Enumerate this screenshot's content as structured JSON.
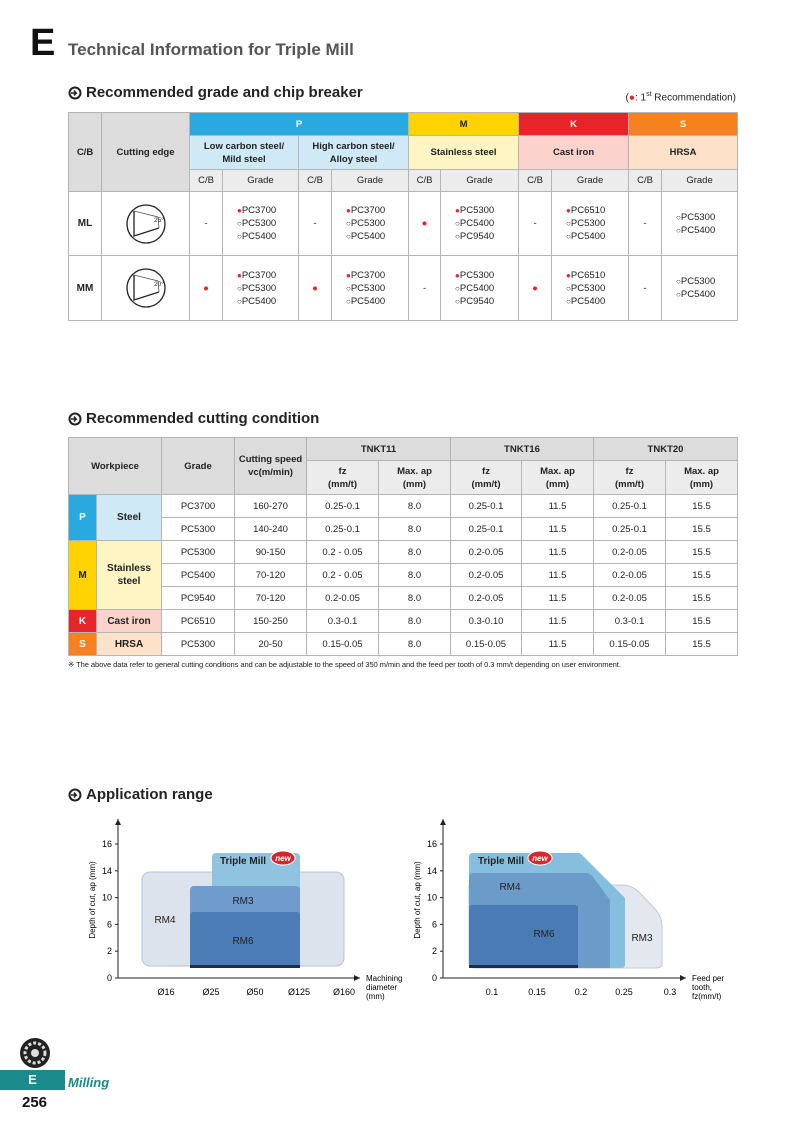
{
  "header": {
    "letter": "E",
    "title": "Technical Information for Triple Mill"
  },
  "grade_section": {
    "title": "Recommended grade and chip breaker",
    "legend": {
      "open": "(",
      "symbol": "●",
      "text": ": 1",
      "sup": "st",
      "rest": " Recommendation)"
    },
    "table": {
      "cb_header": "C/B",
      "edge_header": "Cutting edge",
      "groups": [
        {
          "code": "P",
          "materials": [
            [
              "Low carbon steel/",
              "Mild steel"
            ],
            [
              "High carbon steel/",
              "Alloy steel"
            ]
          ]
        },
        {
          "code": "M",
          "materials": [
            [
              "Stainless steel"
            ]
          ]
        },
        {
          "code": "K",
          "materials": [
            [
              "Cast iron"
            ]
          ]
        },
        {
          "code": "S",
          "materials": [
            [
              "HRSA"
            ]
          ]
        }
      ],
      "sub_headers": [
        "C/B",
        "Grade"
      ],
      "rows": [
        {
          "cb": "ML",
          "angle": "25°",
          "cells": [
            {
              "mark": "-",
              "grades": [
                {
                  "symbol": "●",
                  "grade": "PC3700"
                },
                {
                  "symbol": "○",
                  "grade": "PC5300"
                },
                {
                  "symbol": "○",
                  "grade": "PC5400"
                }
              ]
            },
            {
              "mark": "-",
              "grades": [
                {
                  "symbol": "●",
                  "grade": "PC3700"
                },
                {
                  "symbol": "○",
                  "grade": "PC5300"
                },
                {
                  "symbol": "○",
                  "grade": "PC5400"
                }
              ]
            },
            {
              "mark": "●",
              "grades": [
                {
                  "symbol": "●",
                  "grade": "PC5300"
                },
                {
                  "symbol": "○",
                  "grade": "PC5400"
                },
                {
                  "symbol": "○",
                  "grade": "PC9540"
                }
              ]
            },
            {
              "mark": "-",
              "grades": [
                {
                  "symbol": "●",
                  "grade": "PC6510"
                },
                {
                  "symbol": "○",
                  "grade": "PC5300"
                },
                {
                  "symbol": "○",
                  "grade": "PC5400"
                }
              ]
            },
            {
              "mark": "-",
              "grades": [
                {
                  "symbol": "○",
                  "grade": "PC5300"
                },
                {
                  "symbol": "○",
                  "grade": "PC5400"
                }
              ]
            }
          ]
        },
        {
          "cb": "MM",
          "angle": "20°",
          "cells": [
            {
              "mark": "●",
              "grades": [
                {
                  "symbol": "●",
                  "grade": "PC3700"
                },
                {
                  "symbol": "○",
                  "grade": "PC5300"
                },
                {
                  "symbol": "○",
                  "grade": "PC5400"
                }
              ]
            },
            {
              "mark": "●",
              "grades": [
                {
                  "symbol": "●",
                  "grade": "PC3700"
                },
                {
                  "symbol": "○",
                  "grade": "PC5300"
                },
                {
                  "symbol": "○",
                  "grade": "PC5400"
                }
              ]
            },
            {
              "mark": "-",
              "grades": [
                {
                  "symbol": "●",
                  "grade": "PC5300"
                },
                {
                  "symbol": "○",
                  "grade": "PC5400"
                },
                {
                  "symbol": "○",
                  "grade": "PC9540"
                }
              ]
            },
            {
              "mark": "●",
              "grades": [
                {
                  "symbol": "●",
                  "grade": "PC6510"
                },
                {
                  "symbol": "○",
                  "grade": "PC5300"
                },
                {
                  "symbol": "○",
                  "grade": "PC5400"
                }
              ]
            },
            {
              "mark": "-",
              "grades": [
                {
                  "symbol": "○",
                  "grade": "PC5300"
                },
                {
                  "symbol": "○",
                  "grade": "PC5400"
                }
              ]
            }
          ]
        }
      ]
    }
  },
  "condition_section": {
    "title": "Recommended cutting condition",
    "table": {
      "headers": {
        "workpiece": "Workpiece",
        "grade": "Grade",
        "speed": [
          "Cutting speed",
          "vc(m/min)"
        ],
        "tools": [
          "TNKT11",
          "TNKT16",
          "TNKT20"
        ],
        "fz": [
          "fz",
          "(mm/t)"
        ],
        "ap": [
          "Max. ap",
          "(mm)"
        ]
      },
      "groups": [
        {
          "code": "P",
          "name": [
            "Steel"
          ],
          "rows": [
            [
              "PC3700",
              "160-270",
              "0.25-0.1",
              "8.0",
              "0.25-0.1",
              "11.5",
              "0.25-0.1",
              "15.5"
            ],
            [
              "PC5300",
              "140-240",
              "0.25-0.1",
              "8.0",
              "0.25-0.1",
              "11.5",
              "0.25-0.1",
              "15.5"
            ]
          ]
        },
        {
          "code": "M",
          "name": [
            "Stainless",
            "steel"
          ],
          "rows": [
            [
              "PC5300",
              "90-150",
              "0.2 - 0.05",
              "8.0",
              "0.2-0.05",
              "11.5",
              "0.2-0.05",
              "15.5"
            ],
            [
              "PC5400",
              "70-120",
              "0.2 - 0.05",
              "8.0",
              "0.2-0.05",
              "11.5",
              "0.2-0.05",
              "15.5"
            ],
            [
              "PC9540",
              "70-120",
              "0.2-0.05",
              "8.0",
              "0.2-0.05",
              "11.5",
              "0.2-0.05",
              "15.5"
            ]
          ]
        },
        {
          "code": "K",
          "name": [
            "Cast iron"
          ],
          "rows": [
            [
              "PC6510",
              "150-250",
              "0.3-0.1",
              "8.0",
              "0.3-0.10",
              "11.5",
              "0.3-0.1",
              "15.5"
            ]
          ]
        },
        {
          "code": "S",
          "name": [
            "HRSA"
          ],
          "rows": [
            [
              "PC5300",
              "20-50",
              "0.15-0.05",
              "8.0",
              "0.15-0.05",
              "11.5",
              "0.15-0.05",
              "15.5"
            ]
          ]
        }
      ]
    },
    "note": "※  The above data refer to general cutting conditions and can be adjustable to the speed of 350 m/min and the feed per tooth of 0.3 mm/t depending on user environment."
  },
  "application_section": {
    "title": "Application range",
    "charts": [
      {
        "y_label": "Depth of cut, ap (mm)",
        "yticks": [
          "0",
          "2",
          "6",
          "10",
          "14",
          "16"
        ],
        "xticks": [
          "Ø16",
          "Ø25",
          "Ø50",
          "Ø125",
          "Ø160"
        ],
        "x_label": [
          "Machining",
          "diameter",
          "(mm)"
        ],
        "regions": {
          "rm4": "RM4",
          "rm3": "RM3",
          "rm6": "RM6",
          "triple": "Triple Mill",
          "badge": "new"
        }
      },
      {
        "y_label": "Depth of cut, ap (mm)",
        "yticks": [
          "0",
          "2",
          "6",
          "10",
          "14",
          "16"
        ],
        "xticks": [
          "0.1",
          "0.15",
          "0.2",
          "0.25",
          "0.3"
        ],
        "x_label": [
          "Feed per",
          "tooth,",
          "fz(mm/t)"
        ],
        "regions": {
          "rm4": "RM4",
          "rm3": "RM3",
          "rm6": "RM6",
          "triple": "Triple Mill",
          "badge": "new"
        }
      }
    ]
  },
  "footer": {
    "letter": "E",
    "section": "Milling",
    "page": "256"
  }
}
